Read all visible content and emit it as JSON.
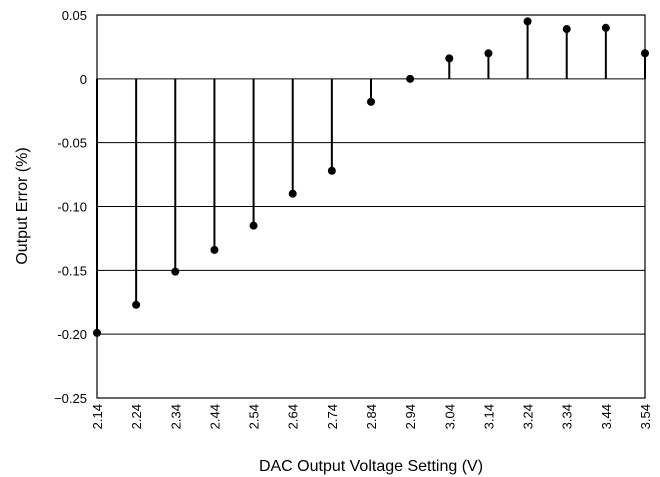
{
  "chart_data": {
    "type": "stem",
    "title": "",
    "xlabel": "DAC Output Voltage Setting (V)",
    "ylabel": "Output Error (%)",
    "x": [
      2.14,
      2.24,
      2.34,
      2.44,
      2.54,
      2.64,
      2.74,
      2.84,
      2.94,
      3.04,
      3.14,
      3.24,
      3.34,
      3.44,
      3.54
    ],
    "x_tick_labels": [
      "2.14",
      "2.24",
      "2.34",
      "2.44",
      "2.54",
      "2.64",
      "2.74",
      "2.84",
      "2.94",
      "3.04",
      "3.14",
      "3.24",
      "3.34",
      "3.44",
      "3.54"
    ],
    "values": [
      -0.199,
      -0.177,
      -0.151,
      -0.134,
      -0.115,
      -0.09,
      -0.072,
      -0.018,
      0.0,
      0.016,
      0.02,
      0.045,
      0.039,
      0.04,
      0.02
    ],
    "y_ticks": [
      0.05,
      0,
      -0.05,
      -0.1,
      -0.15,
      -0.2,
      -0.25
    ],
    "y_tick_labels": [
      "0.05",
      "0",
      "-0.05",
      "-0.10",
      "-0.15",
      "-0.20",
      "−0.25"
    ],
    "xlim": [
      2.14,
      3.54
    ],
    "ylim": [
      -0.25,
      0.05
    ],
    "grid": "horizontal",
    "legend": "none"
  }
}
